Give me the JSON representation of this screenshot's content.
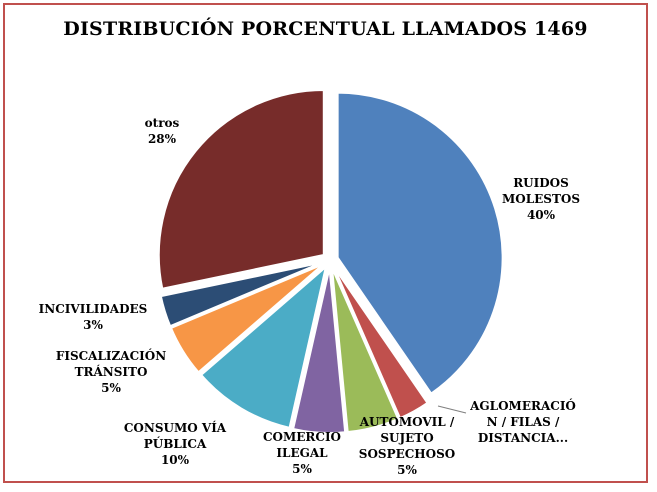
{
  "chart_data": {
    "type": "pie",
    "title": "DISTRIBUCIÓN PORCENTUAL LLAMADOS 1469",
    "slices": [
      {
        "label": [
          "RUIDOS",
          "MOLESTOS",
          "40%"
        ],
        "value": 40,
        "color": "#4f81bd"
      },
      {
        "label": [
          "AGLOMERACIÓ",
          "N / FILAS /",
          "DISTANCIA..."
        ],
        "value": 3,
        "color": "#c0504d"
      },
      {
        "label": [
          "AUTOMOVIL /",
          "SUJETO",
          "SOSPECHOSO",
          "5%"
        ],
        "value": 5,
        "color": "#9bbb59"
      },
      {
        "label": [
          "COMERCIO",
          "ILEGAL",
          "5%"
        ],
        "value": 5,
        "color": "#8064a2"
      },
      {
        "label": [
          "CONSUMO VÍA",
          "PÚBLICA",
          "10%"
        ],
        "value": 10,
        "color": "#4bacc6"
      },
      {
        "label": [
          "FISCALIZACIÓN",
          "TRÁNSITO",
          "5%"
        ],
        "value": 5,
        "color": "#f79646"
      },
      {
        "label": [
          "INCIVILIDADES",
          "3%"
        ],
        "value": 3,
        "color": "#2c4d75"
      },
      {
        "label": [
          "otros",
          "28%"
        ],
        "value": 28,
        "color": "#772c2a"
      }
    ]
  }
}
